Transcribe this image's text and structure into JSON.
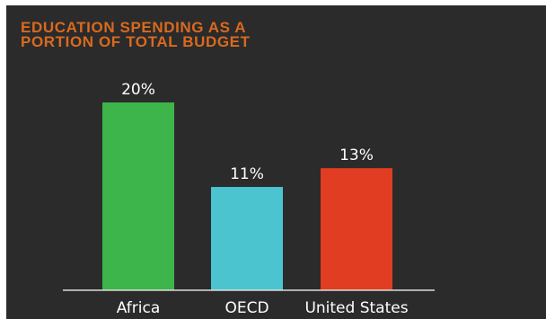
{
  "chart_data": {
    "type": "bar",
    "title": "EDUCATION SPENDING AS A\nPORTION OF TOTAL BUDGET",
    "categories": [
      "Africa",
      "OECD",
      "United States"
    ],
    "values": [
      20,
      11,
      13
    ],
    "value_labels": [
      "20%",
      "11%",
      "13%"
    ],
    "colors": [
      "#3db54a",
      "#4cc4d0",
      "#e03d22"
    ],
    "ylim": [
      0,
      20
    ],
    "grid": false,
    "title_color": "#d96a1f",
    "background_color": "#2b2b2b"
  }
}
